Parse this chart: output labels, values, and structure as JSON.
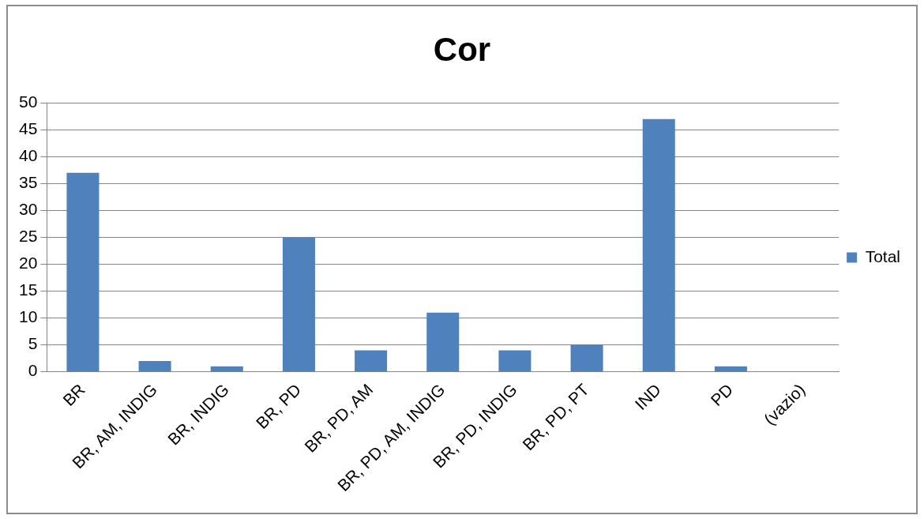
{
  "chart_data": {
    "type": "bar",
    "title": "Cor",
    "categories": [
      "BR",
      "BR, AM, INDIG",
      "BR, INDIG",
      "BR, PD",
      "BR, PD, AM",
      "BR, PD, AM, INDIG",
      "BR, PD, INDIG",
      "BR, PD, PT",
      "IND",
      "PD",
      "(vazio)"
    ],
    "series": [
      {
        "name": "Total",
        "color": "#4f81bd",
        "values": [
          37,
          2,
          1,
          25,
          4,
          11,
          4,
          5,
          47,
          1,
          null
        ]
      }
    ],
    "ylim": [
      0,
      50
    ],
    "yticks": [
      0,
      5,
      10,
      15,
      20,
      25,
      30,
      35,
      40,
      45,
      50
    ],
    "grid": "y",
    "legend": "right"
  }
}
